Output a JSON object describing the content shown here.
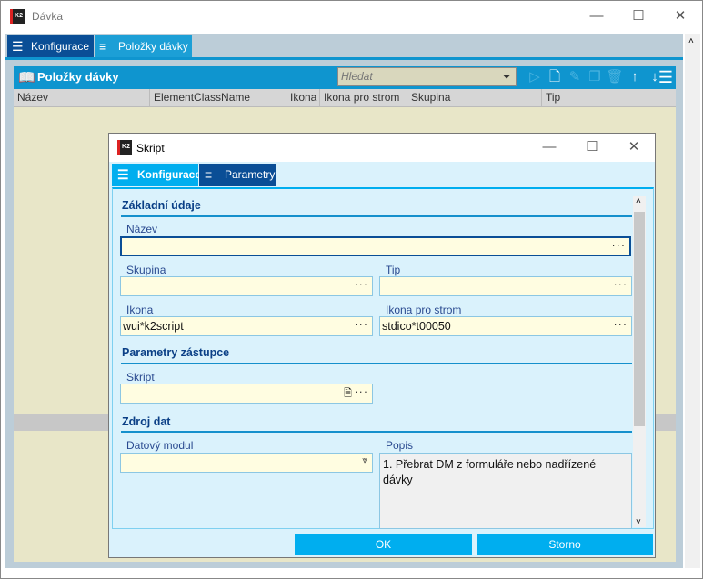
{
  "window": {
    "title": "Dávka",
    "logo": "K2"
  },
  "tabs": [
    {
      "label": "Konfigurace",
      "icon": "list-icon"
    },
    {
      "label": "Položky dávky",
      "icon": "lines-icon"
    }
  ],
  "panel": {
    "title": "Položky dávky",
    "search_placeholder": "Hledat",
    "columns": [
      "Název",
      "ElementClassName",
      "Ikona",
      "Ikona pro strom",
      "Skupina",
      "Tip"
    ]
  },
  "dialog": {
    "title": "Skript",
    "logo": "K2",
    "tabs": [
      {
        "label": "Konfigurace"
      },
      {
        "label": "Parametry"
      }
    ],
    "sections": {
      "basic": "Základní údaje",
      "proxy": "Parametry zástupce",
      "source": "Zdroj dat"
    },
    "fields": {
      "nazev": {
        "label": "Název",
        "value": ""
      },
      "skupina": {
        "label": "Skupina",
        "value": ""
      },
      "tip": {
        "label": "Tip",
        "value": ""
      },
      "ikona": {
        "label": "Ikona",
        "value": "wui*k2script"
      },
      "ikona_strom": {
        "label": "Ikona pro strom",
        "value": "stdico*t00050"
      },
      "skript": {
        "label": "Skript",
        "value": ""
      },
      "datovy_modul": {
        "label": "Datový modul",
        "value": ""
      },
      "popis": {
        "label": "Popis",
        "value": "1. Přebrat DM z formuláře nebo nadřízené dávky"
      }
    },
    "buttons": {
      "ok": "OK",
      "cancel": "Storno"
    }
  },
  "colors": {
    "accent": "#0f95cf",
    "button": "#00aeef",
    "dark_tab": "#0a4e96",
    "field": "#fffde1"
  }
}
